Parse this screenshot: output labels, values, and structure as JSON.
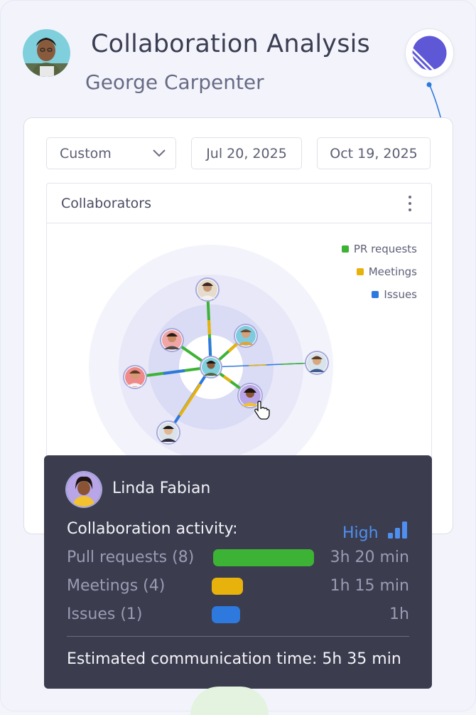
{
  "header": {
    "title": "Collaboration Analysis",
    "user_name": "George Carpenter"
  },
  "filters": {
    "range_select": "Custom",
    "start_date": "Jul 20, 2025",
    "end_date": "Oct 19, 2025"
  },
  "collaborators": {
    "heading": "Collaborators",
    "legend": [
      {
        "label": "PR requests",
        "color": "#3db335"
      },
      {
        "label": "Meetings",
        "color": "#e8b20c"
      },
      {
        "label": "Issues",
        "color": "#2e79de"
      }
    ]
  },
  "colors": {
    "pr": "#3db335",
    "meetings": "#e8b20c",
    "issues": "#2e79de",
    "avatar_ring": "#a8a9dc",
    "tooltip_bg": "#3b3c4e"
  },
  "tooltip": {
    "name": "Linda Fabian",
    "activity_label": "Collaboration activity:",
    "activity_level": "High",
    "rows": [
      {
        "label": "Pull requests (8)",
        "time": "3h 20 min",
        "color": "#3db335"
      },
      {
        "label": "Meetings (4)",
        "time": "1h 15 min",
        "color": "#e8b20c"
      },
      {
        "label": "Issues (1)",
        "time": "1h",
        "color": "#2e79de"
      }
    ],
    "total": "Estimated communication time: 5h 35 min"
  }
}
